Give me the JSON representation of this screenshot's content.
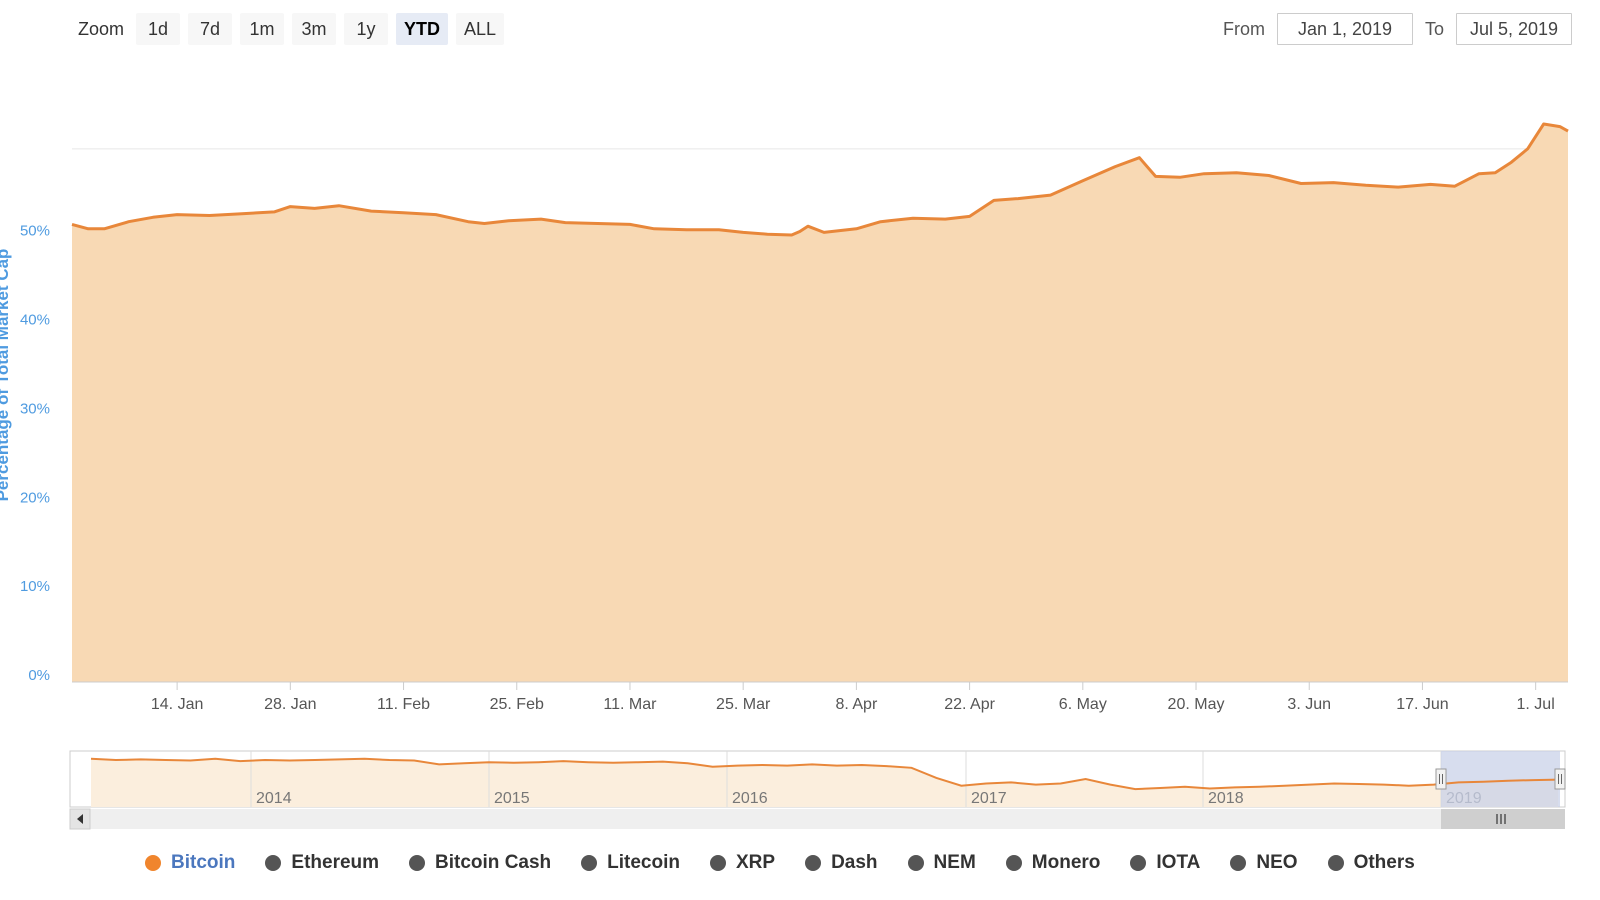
{
  "toolbar": {
    "zoom_label": "Zoom",
    "zoom_buttons": [
      "1d",
      "7d",
      "1m",
      "3m",
      "1y",
      "YTD",
      "ALL"
    ],
    "active_zoom": "YTD",
    "from_label": "From",
    "from_value": "Jan 1, 2019",
    "to_label": "To",
    "to_value": "Jul 5, 2019"
  },
  "colors": {
    "line": "#e8873a",
    "area": "#f8d9b4",
    "grid": "#e6e6e6",
    "y_tick_text": "#4f9be0",
    "navigator_selection": "#c9d2e8",
    "legend_active_text": "#4b77be",
    "legend_active_dot": "#f0852d",
    "legend_inactive_dot": "#555555"
  },
  "chart_data": {
    "type": "area",
    "ylabel": "Percentage of Total Market Cap",
    "ylim": [
      0,
      70
    ],
    "y_ticks": [
      0,
      10,
      20,
      30,
      40,
      50
    ],
    "y_tick_labels": [
      "0%",
      "10%",
      "20%",
      "30%",
      "40%",
      "50%"
    ],
    "grid": true,
    "x_ticks": [
      "14. Jan",
      "28. Jan",
      "11. Feb",
      "25. Feb",
      "11. Mar",
      "25. Mar",
      "8. Apr",
      "22. Apr",
      "6. May",
      "20. May",
      "3. Jun",
      "17. Jun",
      "1. Jul"
    ],
    "series": [
      {
        "name": "Bitcoin",
        "x": [
          "2019-01-01",
          "2019-01-03",
          "2019-01-05",
          "2019-01-08",
          "2019-01-11",
          "2019-01-14",
          "2019-01-18",
          "2019-01-22",
          "2019-01-26",
          "2019-01-28",
          "2019-01-31",
          "2019-02-03",
          "2019-02-07",
          "2019-02-11",
          "2019-02-15",
          "2019-02-19",
          "2019-02-21",
          "2019-02-24",
          "2019-02-28",
          "2019-03-03",
          "2019-03-07",
          "2019-03-11",
          "2019-03-14",
          "2019-03-18",
          "2019-03-22",
          "2019-03-25",
          "2019-03-28",
          "2019-03-31",
          "2019-04-01",
          "2019-04-02",
          "2019-04-04",
          "2019-04-08",
          "2019-04-11",
          "2019-04-15",
          "2019-04-19",
          "2019-04-22",
          "2019-04-25",
          "2019-04-28",
          "2019-05-02",
          "2019-05-06",
          "2019-05-10",
          "2019-05-13",
          "2019-05-15",
          "2019-05-18",
          "2019-05-21",
          "2019-05-25",
          "2019-05-29",
          "2019-06-02",
          "2019-06-06",
          "2019-06-10",
          "2019-06-14",
          "2019-06-18",
          "2019-06-21",
          "2019-06-24",
          "2019-06-26",
          "2019-06-28",
          "2019-06-30",
          "2019-07-02",
          "2019-07-04",
          "2019-07-05"
        ],
        "values": [
          51.5,
          51.0,
          51.0,
          51.8,
          52.3,
          52.6,
          52.5,
          52.7,
          52.9,
          53.5,
          53.3,
          53.6,
          53.0,
          52.8,
          52.6,
          51.8,
          51.6,
          51.9,
          52.1,
          51.7,
          51.6,
          51.5,
          51.0,
          50.9,
          50.9,
          50.6,
          50.4,
          50.3,
          50.7,
          51.3,
          50.6,
          51.0,
          51.8,
          52.2,
          52.1,
          52.4,
          54.2,
          54.4,
          54.8,
          56.4,
          58.0,
          59.0,
          56.9,
          56.8,
          57.2,
          57.3,
          57.0,
          56.1,
          56.2,
          55.9,
          55.7,
          56.0,
          55.8,
          57.2,
          57.3,
          58.5,
          60.0,
          62.8,
          62.5,
          62.0
        ]
      }
    ],
    "navigator": {
      "year_labels": [
        "2014",
        "2015",
        "2016",
        "2017",
        "2018",
        "2019"
      ],
      "values": [
        86,
        84,
        85,
        84,
        83,
        86,
        82,
        84,
        83,
        84,
        85,
        86,
        84,
        83,
        76,
        78,
        80,
        79,
        80,
        82,
        80,
        79,
        80,
        81,
        78,
        72,
        74,
        75,
        74,
        76,
        74,
        75,
        73,
        70,
        52,
        38,
        42,
        44,
        40,
        42,
        50,
        40,
        32,
        34,
        36,
        33,
        35,
        36,
        38,
        40,
        42,
        41,
        40,
        38,
        40,
        44,
        45,
        47,
        48,
        49
      ]
    },
    "legend": [
      "Bitcoin",
      "Ethereum",
      "Bitcoin Cash",
      "Litecoin",
      "XRP",
      "Dash",
      "NEM",
      "Monero",
      "IOTA",
      "NEO",
      "Others"
    ],
    "legend_active": "Bitcoin"
  }
}
